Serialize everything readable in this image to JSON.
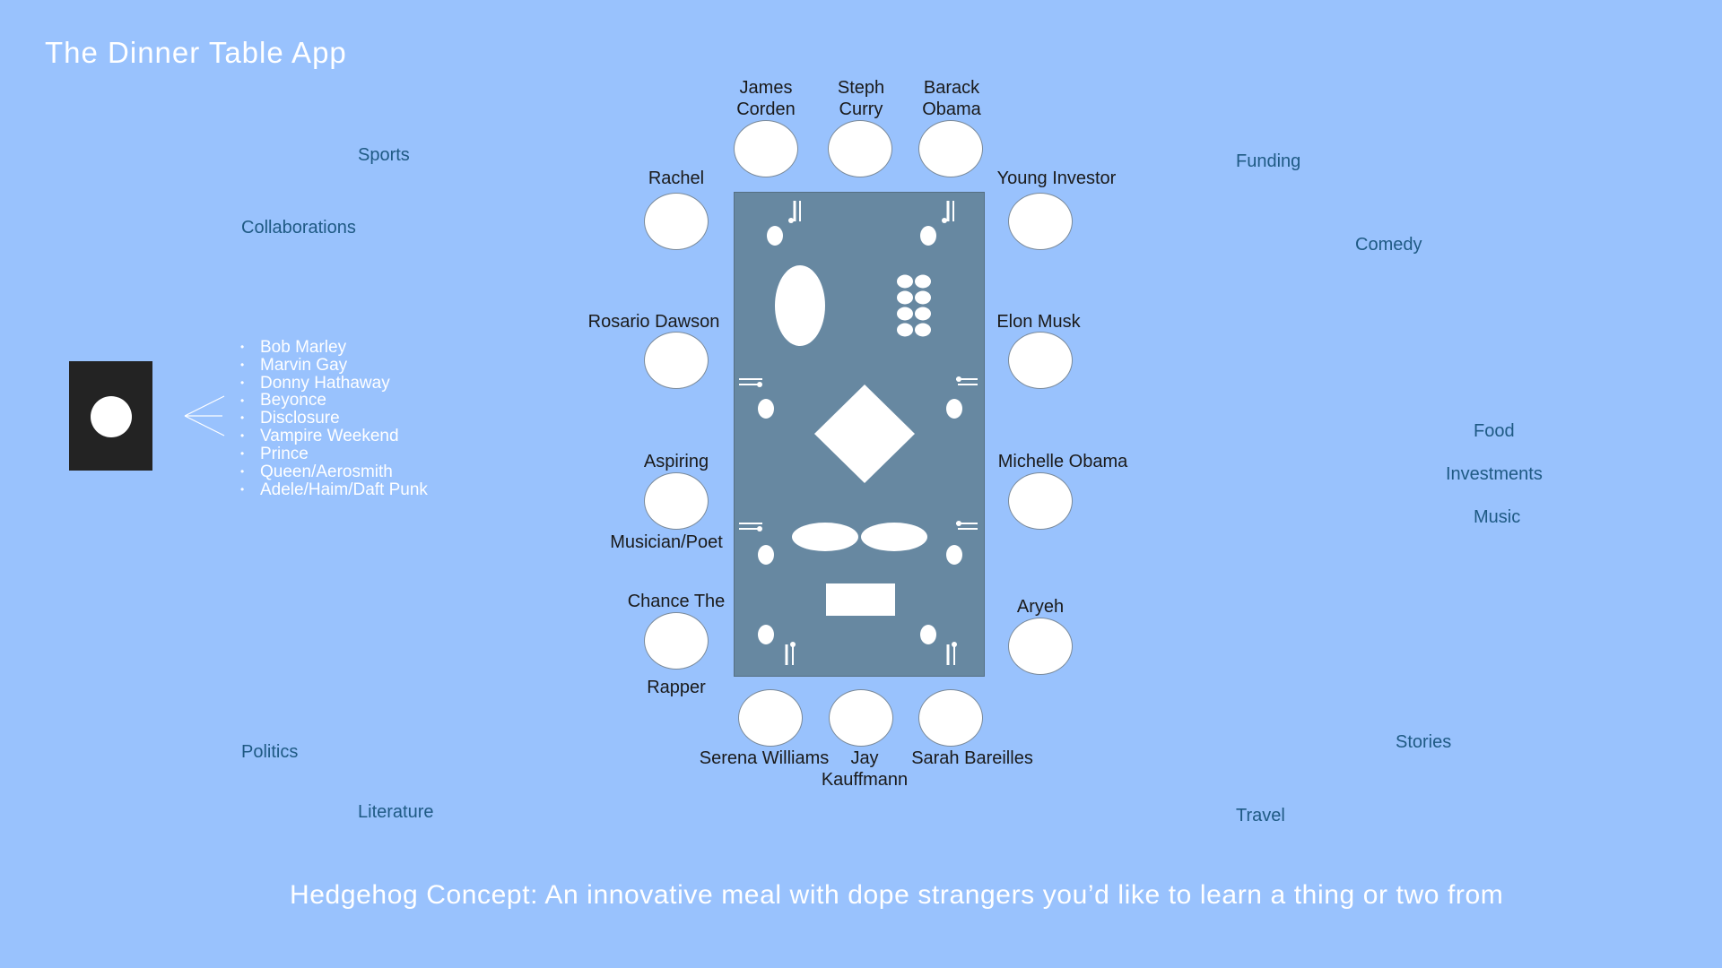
{
  "app": {
    "title": "The Dinner Table App"
  },
  "topics": {
    "sports": "Sports",
    "collaborations": "Collaborations",
    "politics": "Politics",
    "literature": "Literature",
    "funding": "Funding",
    "comedy": "Comedy",
    "food": "Food",
    "investments": "Investments",
    "music": "Music",
    "stories": "Stories",
    "travel": "Travel"
  },
  "music_list": [
    "Bob Marley",
    "Marvin Gay",
    "Donny Hathaway",
    "Beyonce",
    "Disclosure",
    "Vampire Weekend",
    "Prince",
    "Queen/Aerosmith",
    "Adele/Haim/Daft Punk"
  ],
  "guests": {
    "james_corden": [
      "James",
      "Corden"
    ],
    "steph_curry": [
      "Steph",
      "Curry"
    ],
    "barack_obama": [
      "Barack",
      "Obama"
    ],
    "rachel": "Rachel",
    "young_investor": "Young Investor",
    "rosario_dawson": "Rosario Dawson",
    "elon_musk": "Elon Musk",
    "aspiring_musician": [
      "Aspiring",
      "Musician/Poet"
    ],
    "michelle_obama": "Michelle Obama",
    "chance_the_rapper": [
      "Chance The",
      "Rapper"
    ],
    "aryeh": "Aryeh",
    "serena_williams": "Serena Williams",
    "jay_kauffmann": [
      "Jay",
      "Kauffmann"
    ],
    "sarah_bareilles": "Sarah Bareilles"
  },
  "tagline": "Hedgehog Concept: An innovative meal with dope strangers you’d like to learn a thing or two from",
  "colors": {
    "background": "#99c2fd",
    "table": "#6788a1",
    "topic_text": "#1f5a84",
    "seat": "#ffffff",
    "phone": "#232323"
  }
}
